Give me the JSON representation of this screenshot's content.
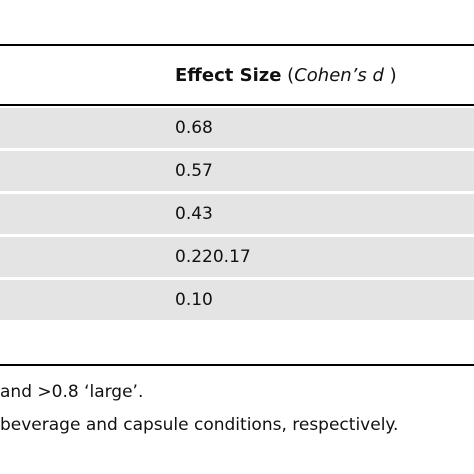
{
  "table": {
    "header": {
      "label_bold": "Effect Size",
      "paren_open": " (",
      "label_italic": "Cohen’s d",
      "paren_close": " )"
    },
    "rows": [
      {
        "value": "0.68"
      },
      {
        "value": "0.57"
      },
      {
        "value": "0.43"
      },
      {
        "value": "0.220.17"
      },
      {
        "value": "0.10"
      }
    ]
  },
  "footnotes": {
    "line1": " and >0.8 ‘large’.",
    "line2": "beverage and capsule conditions, respectively."
  }
}
